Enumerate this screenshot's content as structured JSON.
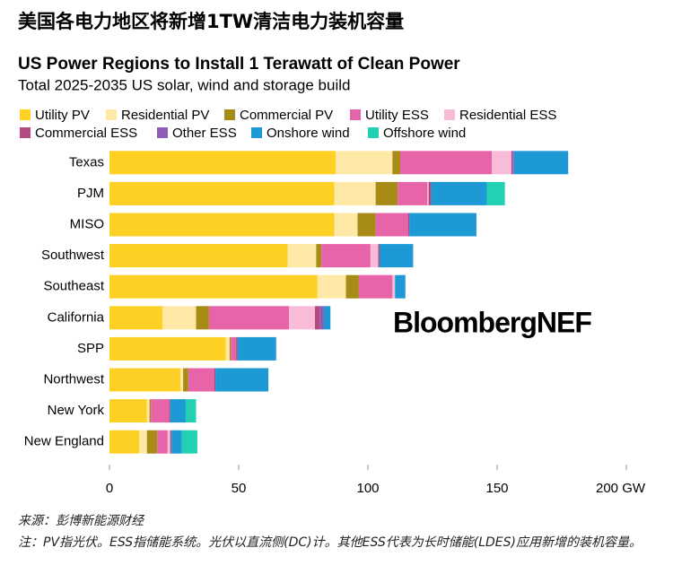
{
  "header": "美国各电力地区将新增1TW清洁电力装机容量",
  "chart_data": {
    "type": "stacked-bar-horizontal",
    "title": "US Power Regions to Install 1 Terawatt of Clean Power",
    "subtitle": "Total 2025-2035 US solar, wind and storage build",
    "watermark": "BloombergNEF",
    "categories": [
      "Texas",
      "PJM",
      "MISO",
      "Southwest",
      "Southeast",
      "California",
      "SPP",
      "Northwest",
      "New York",
      "New England"
    ],
    "series": [
      {
        "name": "Utility PV",
        "color": "#fdd023",
        "values": [
          87.5,
          87,
          87,
          69,
          80.5,
          20.5,
          45,
          27.5,
          14.5,
          11.5
        ]
      },
      {
        "name": "Residential PV",
        "color": "#fde9a5",
        "values": [
          22,
          16,
          9,
          11,
          11,
          13,
          1.5,
          1,
          1,
          3
        ]
      },
      {
        "name": "Commercial PV",
        "color": "#a88b16",
        "values": [
          3,
          8.5,
          7,
          2,
          5,
          5,
          0.5,
          2,
          0.5,
          4
        ]
      },
      {
        "name": "Utility ESS",
        "color": "#e864a8",
        "values": [
          35.5,
          11.5,
          12.5,
          19,
          13,
          31,
          2,
          10,
          7,
          4
        ]
      },
      {
        "name": "Residential ESS",
        "color": "#f8bcd8",
        "values": [
          7.5,
          0.5,
          0,
          3,
          1,
          10,
          0,
          0,
          0,
          1
        ]
      },
      {
        "name": "Commercial ESS",
        "color": "#b34b80",
        "values": [
          0.5,
          1,
          0.5,
          0.5,
          0,
          2,
          0.5,
          0.5,
          0.5,
          0.5
        ]
      },
      {
        "name": "Other ESS",
        "color": "#8f5cb8",
        "values": [
          0.5,
          0,
          0,
          0,
          0,
          1.5,
          0,
          0,
          0,
          0
        ]
      },
      {
        "name": "Onshore wind",
        "color": "#1d9ad6",
        "values": [
          21,
          21.5,
          26,
          13,
          4,
          2.5,
          15,
          20.5,
          6,
          4
        ]
      },
      {
        "name": "Offshore wind",
        "color": "#22d1b2",
        "values": [
          0,
          7,
          0,
          0,
          0,
          0,
          0,
          0,
          4,
          6
        ]
      }
    ],
    "xlim": [
      0,
      200
    ],
    "xticks": [
      0,
      50,
      100,
      150,
      {
        "value": 200,
        "label": "200 GW"
      }
    ]
  },
  "footer": {
    "source": "来源：彭博新能源财经",
    "note": "注：PV指光伏。ESS指储能系统。光伏以直流侧(DC)计。其他ESS代表为长时储能(LDES)应用新增的装机容量。"
  }
}
